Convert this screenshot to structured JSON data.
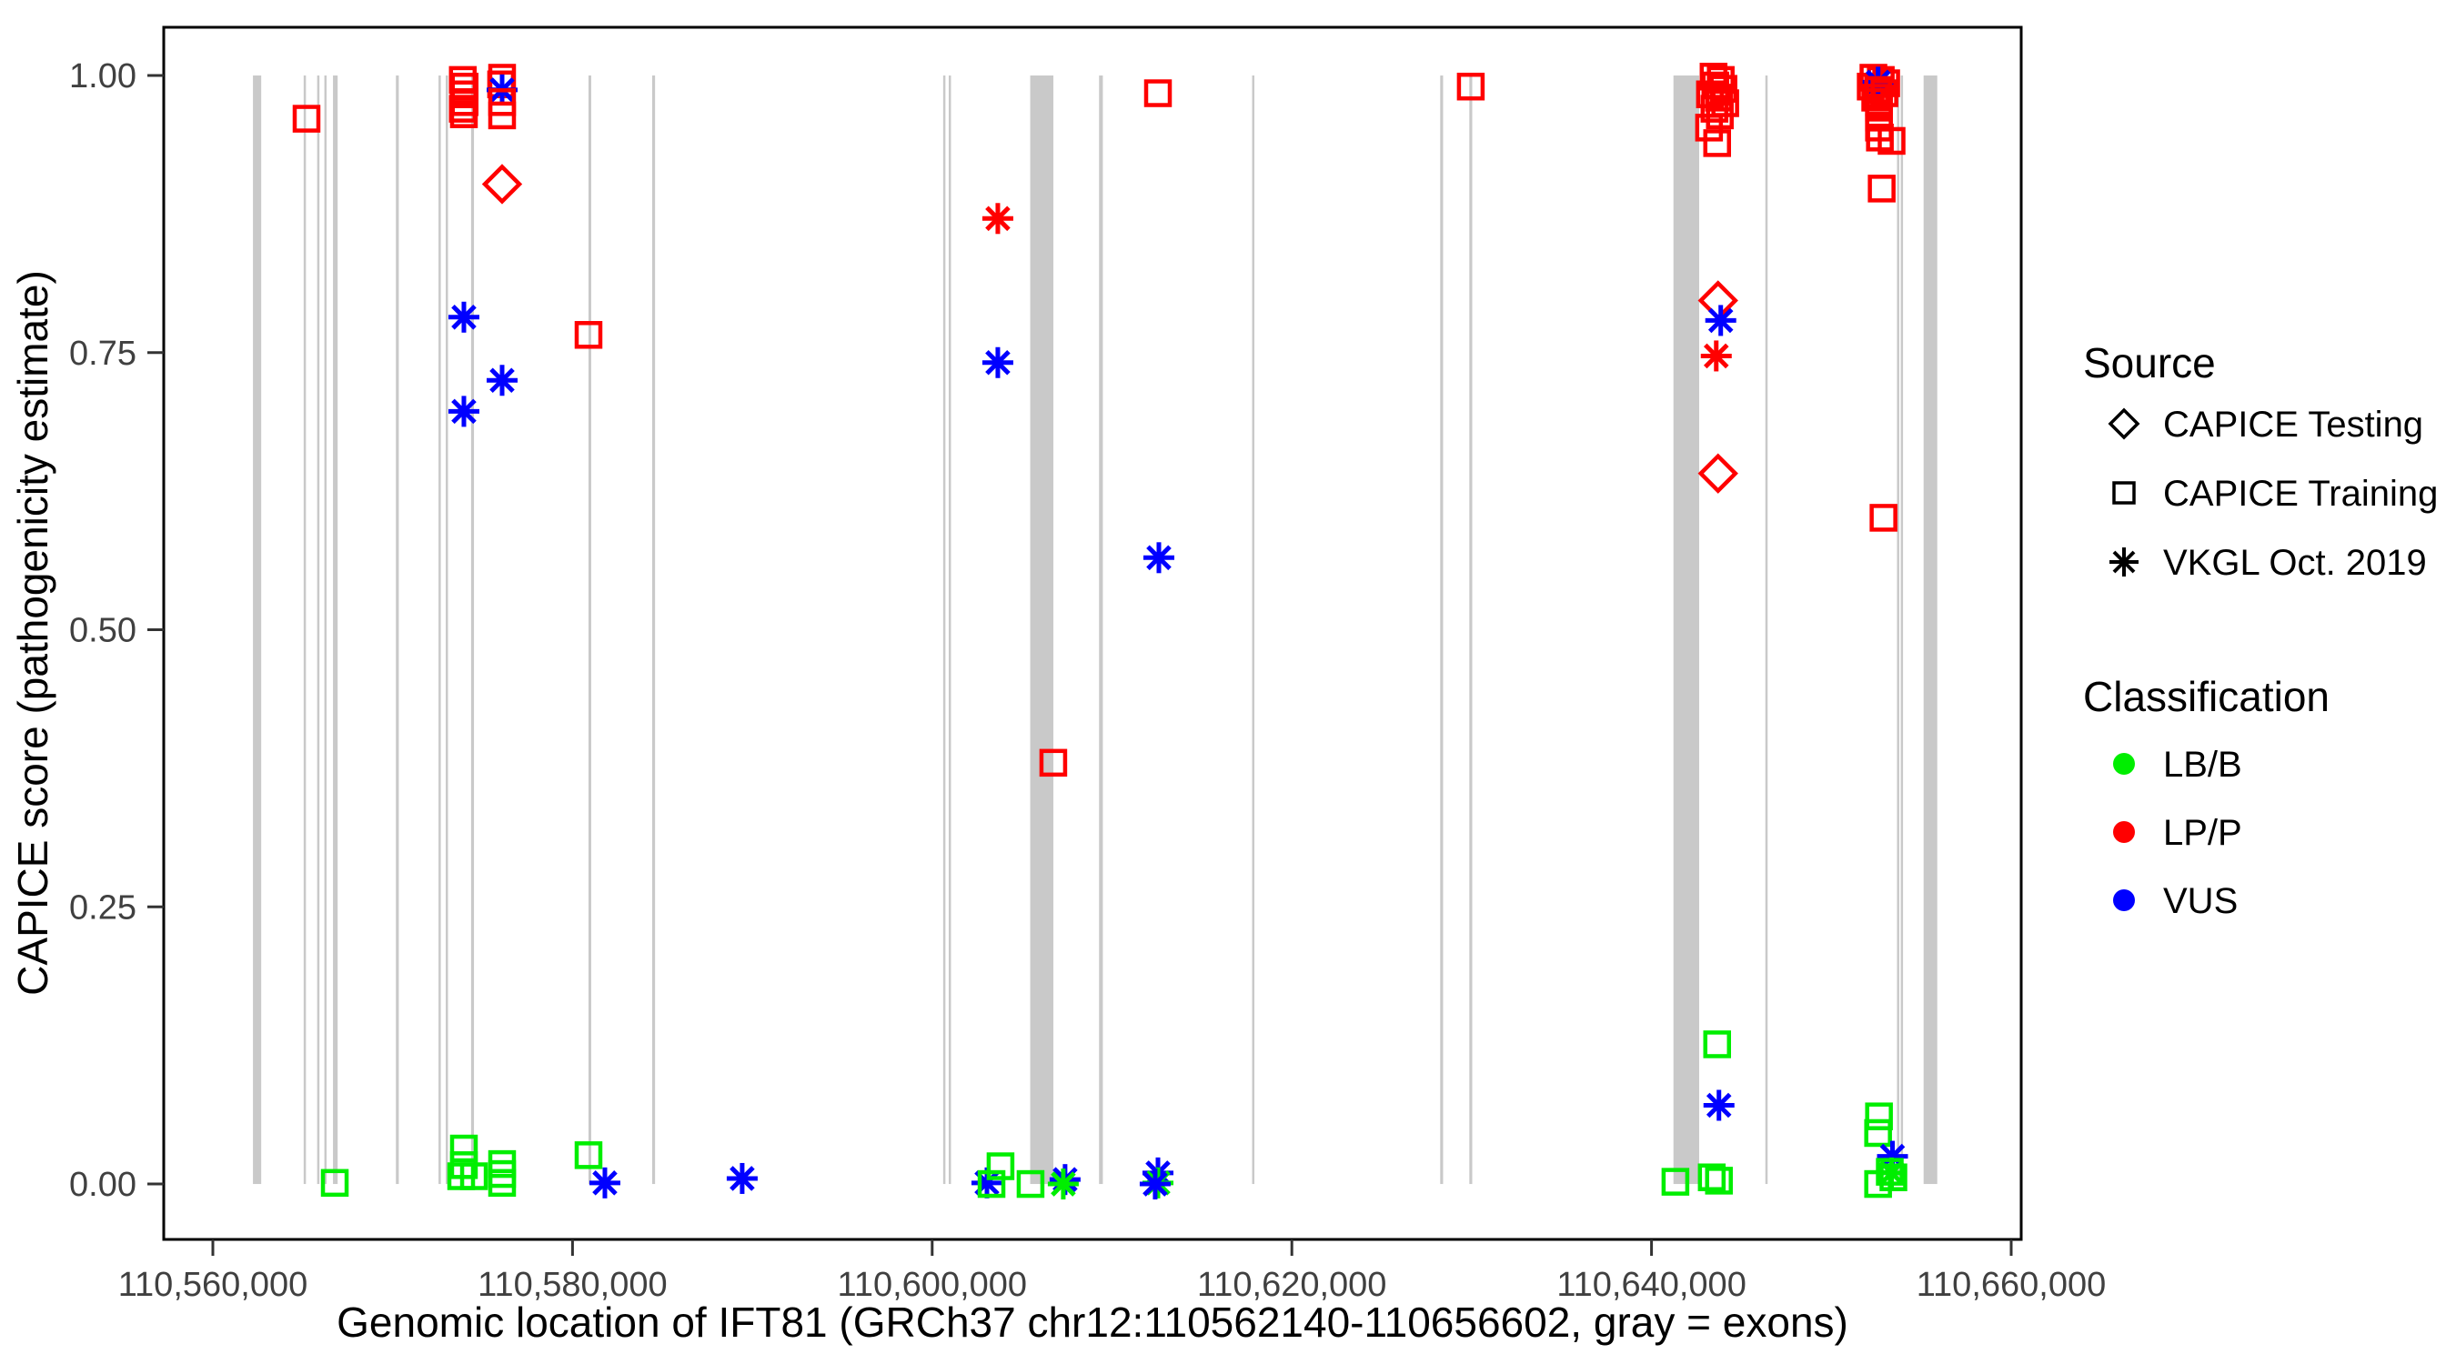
{
  "chart_data": {
    "type": "scatter",
    "title": "",
    "xlabel": "Genomic location of IFT81 (GRCh37 chr12:110562140-110656602, gray = exons)",
    "ylabel": "CAPICE score (pathogenicity estimate)",
    "xlim": [
      110557269,
      110660557
    ],
    "ylim": [
      -0.05,
      1.0435
    ],
    "grid": false,
    "legend_position": "right",
    "x_ticks": [
      {
        "v": 110560000,
        "label": "110,560,000"
      },
      {
        "v": 110580000,
        "label": "110,580,000"
      },
      {
        "v": 110600000,
        "label": "110,600,000"
      },
      {
        "v": 110620000,
        "label": "110,620,000"
      },
      {
        "v": 110640000,
        "label": "110,640,000"
      },
      {
        "v": 110660000,
        "label": "110,660,000"
      }
    ],
    "y_ticks": [
      {
        "v": 0.0,
        "label": "0.00"
      },
      {
        "v": 0.25,
        "label": "0.25"
      },
      {
        "v": 0.5,
        "label": "0.50"
      },
      {
        "v": 0.75,
        "label": "0.75"
      },
      {
        "v": 1.0,
        "label": "1.00"
      }
    ],
    "colors": {
      "LB/B": "#00ee00",
      "LP/P": "#ff0000",
      "VUS": "#0000ff"
    },
    "exon_color": "#c9c9c9",
    "exons": [
      [
        110562230,
        110562690
      ],
      [
        110565050,
        110565160
      ],
      [
        110565800,
        110565910
      ],
      [
        110566200,
        110566310
      ],
      [
        110566680,
        110566940
      ],
      [
        110570180,
        110570340
      ],
      [
        110572550,
        110572660
      ],
      [
        110572950,
        110573060
      ],
      [
        110574360,
        110574520
      ],
      [
        110580890,
        110581040
      ],
      [
        110584430,
        110584590
      ],
      [
        110600610,
        110600720
      ],
      [
        110600920,
        110601030
      ],
      [
        110605450,
        110606740
      ],
      [
        110609280,
        110609490
      ],
      [
        110617790,
        110617900
      ],
      [
        110628250,
        110628410
      ],
      [
        110629870,
        110630030
      ],
      [
        110641220,
        110642650
      ],
      [
        110646330,
        110646440
      ],
      [
        110653650,
        110653760
      ],
      [
        110653860,
        110653970
      ],
      [
        110655130,
        110655890
      ]
    ],
    "points": [
      {
        "g": 110565210,
        "score": 0.961,
        "source": "training",
        "cls": "LP/P"
      },
      {
        "g": 110566780,
        "score": 0.001,
        "source": "training",
        "cls": "LB/B"
      },
      {
        "g": 110573900,
        "score": 0.996,
        "source": "training",
        "cls": "LP/P"
      },
      {
        "g": 110574000,
        "score": 0.99,
        "source": "training",
        "cls": "LP/P"
      },
      {
        "g": 110573950,
        "score": 0.983,
        "source": "training",
        "cls": "LP/P"
      },
      {
        "g": 110574000,
        "score": 0.976,
        "source": "training",
        "cls": "LP/P"
      },
      {
        "g": 110573900,
        "score": 0.97,
        "source": "training",
        "cls": "LP/P"
      },
      {
        "g": 110573960,
        "score": 0.965,
        "source": "training",
        "cls": "LP/P"
      },
      {
        "g": 110573960,
        "score": 0.782,
        "source": "vkgl",
        "cls": "VUS"
      },
      {
        "g": 110573960,
        "score": 0.697,
        "source": "vkgl",
        "cls": "VUS"
      },
      {
        "g": 110573960,
        "score": 0.032,
        "source": "training",
        "cls": "LB/B"
      },
      {
        "g": 110573960,
        "score": 0.017,
        "source": "training",
        "cls": "LB/B"
      },
      {
        "g": 110573810,
        "score": 0.007,
        "source": "training",
        "cls": "LB/B"
      },
      {
        "g": 110574520,
        "score": 0.007,
        "source": "training",
        "cls": "LB/B"
      },
      {
        "g": 110576085,
        "score": 0.998,
        "source": "training",
        "cls": "LP/P"
      },
      {
        "g": 110576030,
        "score": 0.992,
        "source": "training",
        "cls": "LP/P"
      },
      {
        "g": 110576085,
        "score": 0.987,
        "source": "vkgl",
        "cls": "VUS"
      },
      {
        "g": 110576085,
        "score": 0.976,
        "source": "training",
        "cls": "LP/P"
      },
      {
        "g": 110576085,
        "score": 0.964,
        "source": "training",
        "cls": "LP/P"
      },
      {
        "g": 110576085,
        "score": 0.902,
        "source": "testing",
        "cls": "LP/P"
      },
      {
        "g": 110576085,
        "score": 0.725,
        "source": "vkgl",
        "cls": "VUS"
      },
      {
        "g": 110576085,
        "score": 0.018,
        "source": "training",
        "cls": "LB/B"
      },
      {
        "g": 110576085,
        "score": 0.009,
        "source": "training",
        "cls": "LB/B"
      },
      {
        "g": 110576085,
        "score": 0.001,
        "source": "training",
        "cls": "LB/B"
      },
      {
        "g": 110580890,
        "score": 0.766,
        "source": "training",
        "cls": "LP/P"
      },
      {
        "g": 110580890,
        "score": 0.026,
        "source": "training",
        "cls": "LB/B"
      },
      {
        "g": 110581800,
        "score": 0.001,
        "source": "vkgl",
        "cls": "VUS"
      },
      {
        "g": 110589435,
        "score": 0.005,
        "source": "vkgl",
        "cls": "VUS"
      },
      {
        "g": 110603650,
        "score": 0.871,
        "source": "vkgl",
        "cls": "LP/P"
      },
      {
        "g": 110603650,
        "score": 0.741,
        "source": "vkgl",
        "cls": "VUS"
      },
      {
        "g": 110603045,
        "score": 0.001,
        "source": "vkgl",
        "cls": "VUS"
      },
      {
        "g": 110603800,
        "score": 0.016,
        "source": "training",
        "cls": "LB/B"
      },
      {
        "g": 110603300,
        "score": 0.0,
        "source": "training",
        "cls": "LB/B"
      },
      {
        "g": 110605470,
        "score": 0.0,
        "source": "training",
        "cls": "LB/B"
      },
      {
        "g": 110607390,
        "score": 0.004,
        "source": "vkgl",
        "cls": "VUS"
      },
      {
        "g": 110607290,
        "score": 0.0,
        "source": "vkgl",
        "cls": "LB/B"
      },
      {
        "g": 110606735,
        "score": 0.38,
        "source": "training",
        "cls": "LP/P"
      },
      {
        "g": 110612555,
        "score": 0.984,
        "source": "training",
        "cls": "LP/P"
      },
      {
        "g": 110612605,
        "score": 0.565,
        "source": "vkgl",
        "cls": "VUS"
      },
      {
        "g": 110612555,
        "score": 0.01,
        "source": "vkgl",
        "cls": "VUS"
      },
      {
        "g": 110612555,
        "score": 0.001,
        "source": "vkgl",
        "cls": "LB/B"
      },
      {
        "g": 110612400,
        "score": 0.0,
        "source": "vkgl",
        "cls": "VUS"
      },
      {
        "g": 110629950,
        "score": 0.99,
        "source": "training",
        "cls": "LP/P"
      },
      {
        "g": 110643450,
        "score": 0.999,
        "source": "training",
        "cls": "LP/P"
      },
      {
        "g": 110643850,
        "score": 0.996,
        "source": "training",
        "cls": "LP/P"
      },
      {
        "g": 110643550,
        "score": 0.991,
        "source": "training",
        "cls": "LP/P"
      },
      {
        "g": 110644000,
        "score": 0.988,
        "source": "training",
        "cls": "LP/P"
      },
      {
        "g": 110643250,
        "score": 0.983,
        "source": "training",
        "cls": "LP/P"
      },
      {
        "g": 110643750,
        "score": 0.98,
        "source": "training",
        "cls": "LP/P"
      },
      {
        "g": 110644100,
        "score": 0.975,
        "source": "training",
        "cls": "LP/P"
      },
      {
        "g": 110643500,
        "score": 0.97,
        "source": "training",
        "cls": "LP/P"
      },
      {
        "g": 110643800,
        "score": 0.964,
        "source": "training",
        "cls": "LP/P"
      },
      {
        "g": 110643200,
        "score": 0.953,
        "source": "training",
        "cls": "LP/P"
      },
      {
        "g": 110643650,
        "score": 0.939,
        "source": "training",
        "cls": "LP/P"
      },
      {
        "g": 110643700,
        "score": 0.797,
        "source": "testing",
        "cls": "LP/P"
      },
      {
        "g": 110643850,
        "score": 0.779,
        "source": "vkgl",
        "cls": "VUS"
      },
      {
        "g": 110643600,
        "score": 0.747,
        "source": "vkgl",
        "cls": "LP/P"
      },
      {
        "g": 110643700,
        "score": 0.641,
        "source": "testing",
        "cls": "LP/P"
      },
      {
        "g": 110643650,
        "score": 0.126,
        "source": "training",
        "cls": "LB/B"
      },
      {
        "g": 110643750,
        "score": 0.071,
        "source": "vkgl",
        "cls": "VUS"
      },
      {
        "g": 110643350,
        "score": 0.006,
        "source": "training",
        "cls": "LB/B"
      },
      {
        "g": 110643750,
        "score": 0.003,
        "source": "training",
        "cls": "LB/B"
      },
      {
        "g": 110641330,
        "score": 0.002,
        "source": "training",
        "cls": "LB/B"
      },
      {
        "g": 110652340,
        "score": 0.998,
        "source": "training",
        "cls": "LP/P"
      },
      {
        "g": 110652750,
        "score": 0.996,
        "source": "training",
        "cls": "LP/P"
      },
      {
        "g": 110653050,
        "score": 0.993,
        "source": "training",
        "cls": "LP/P"
      },
      {
        "g": 110652190,
        "score": 0.99,
        "source": "training",
        "cls": "LP/P"
      },
      {
        "g": 110652600,
        "score": 0.994,
        "source": "vkgl",
        "cls": "VUS"
      },
      {
        "g": 110652600,
        "score": 0.987,
        "source": "training",
        "cls": "LP/P"
      },
      {
        "g": 110652950,
        "score": 0.984,
        "source": "training",
        "cls": "LP/P"
      },
      {
        "g": 110652440,
        "score": 0.98,
        "source": "training",
        "cls": "LP/P"
      },
      {
        "g": 110652650,
        "score": 0.976,
        "source": "training",
        "cls": "LP/P"
      },
      {
        "g": 110652650,
        "score": 0.971,
        "source": "training",
        "cls": "LP/P"
      },
      {
        "g": 110652650,
        "score": 0.962,
        "source": "training",
        "cls": "LP/P"
      },
      {
        "g": 110652650,
        "score": 0.953,
        "source": "training",
        "cls": "LP/P"
      },
      {
        "g": 110652700,
        "score": 0.944,
        "source": "training",
        "cls": "LP/P"
      },
      {
        "g": 110653350,
        "score": 0.941,
        "source": "training",
        "cls": "LP/P"
      },
      {
        "g": 110652800,
        "score": 0.898,
        "source": "training",
        "cls": "LP/P"
      },
      {
        "g": 110652900,
        "score": 0.601,
        "source": "training",
        "cls": "LP/P"
      },
      {
        "g": 110652650,
        "score": 0.061,
        "source": "training",
        "cls": "LB/B"
      },
      {
        "g": 110652600,
        "score": 0.046,
        "source": "training",
        "cls": "LB/B"
      },
      {
        "g": 110653400,
        "score": 0.025,
        "source": "vkgl",
        "cls": "VUS"
      },
      {
        "g": 110653350,
        "score": 0.01,
        "source": "vkgl",
        "cls": "LB/B"
      },
      {
        "g": 110653250,
        "score": 0.011,
        "source": "training",
        "cls": "LB/B"
      },
      {
        "g": 110653450,
        "score": 0.006,
        "source": "training",
        "cls": "LB/B"
      },
      {
        "g": 110652600,
        "score": 0.0,
        "source": "training",
        "cls": "LB/B"
      }
    ],
    "legend": {
      "source": {
        "title": "Source",
        "items": [
          {
            "shape": "diamond",
            "label": "CAPICE Testing"
          },
          {
            "shape": "square",
            "label": "CAPICE Training"
          },
          {
            "shape": "asterisk",
            "label": "VKGL Oct. 2019"
          }
        ]
      },
      "classification": {
        "title": "Classification",
        "items": [
          {
            "label": "LB/B",
            "color": "#00ee00"
          },
          {
            "label": "LP/P",
            "color": "#ff0000"
          },
          {
            "label": "VUS",
            "color": "#0000ff"
          }
        ]
      }
    }
  }
}
